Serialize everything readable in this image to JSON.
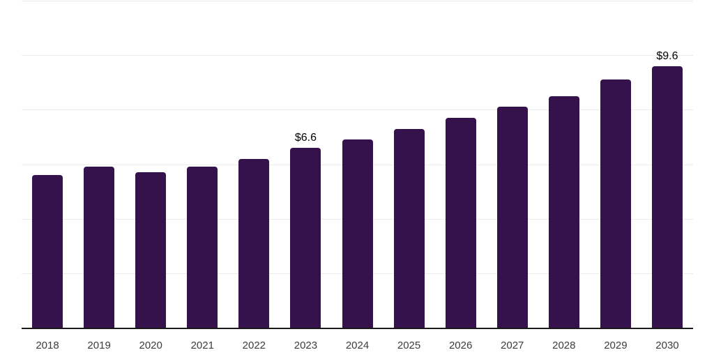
{
  "chart_data": {
    "type": "bar",
    "title": "",
    "categories": [
      "2018",
      "2019",
      "2020",
      "2021",
      "2022",
      "2023",
      "2024",
      "2025",
      "2026",
      "2027",
      "2028",
      "2029",
      "2030"
    ],
    "values": [
      5.6,
      5.9,
      5.7,
      5.9,
      6.2,
      6.6,
      6.9,
      7.3,
      7.7,
      8.1,
      8.5,
      9.1,
      9.6
    ],
    "data_labels": [
      "",
      "",
      "",
      "",
      "",
      "$6.6",
      "",
      "",
      "",
      "",
      "",
      "",
      "$9.6"
    ],
    "xlabel": "",
    "ylabel": "",
    "ylim": [
      0,
      12
    ],
    "gridline_values": [
      2,
      4,
      6,
      8,
      10,
      12
    ],
    "grid": "horizontal",
    "legend": "none",
    "y_axis_tick_labels_visible": false,
    "colors": {
      "bar": "#36124C",
      "grid_line": "#ebebeb",
      "axis_line": "#1a1a1a",
      "tick_label": "#3c3c3c",
      "data_label": "#000000",
      "background": "#ffffff"
    }
  }
}
